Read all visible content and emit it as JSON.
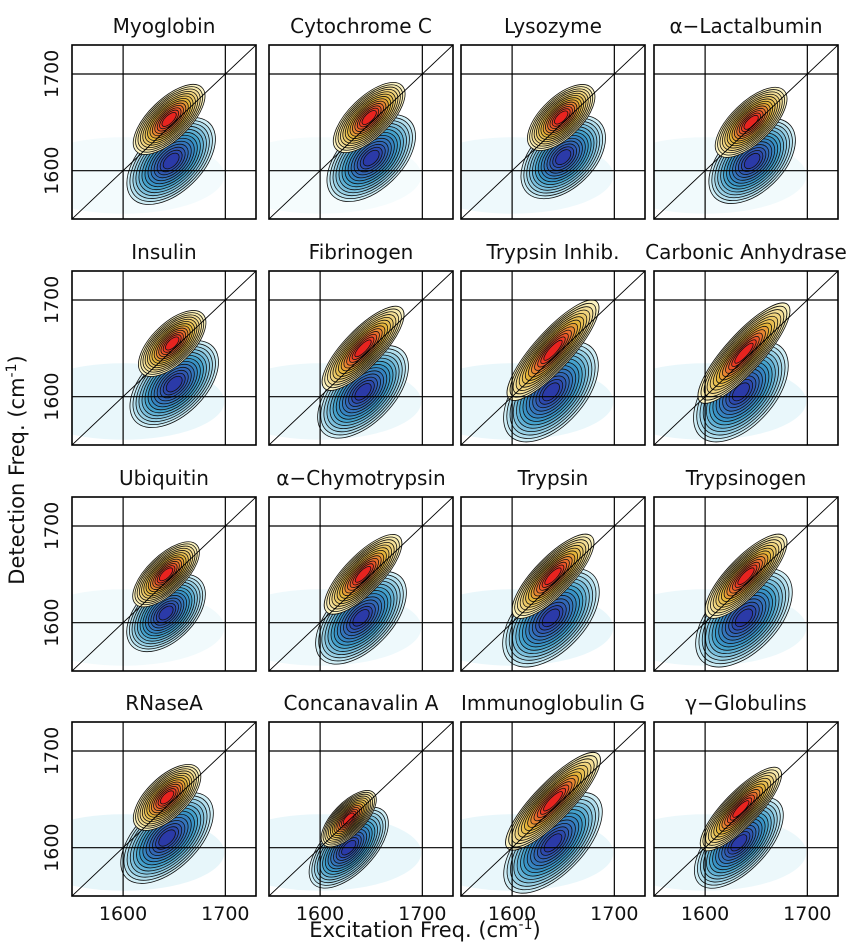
{
  "chart_data": {
    "type": "heatmap",
    "description_kind": "2D IR spectra grid",
    "xlabel": "Excitation Freq. (cm",
    "xlabel_sup": "-1",
    "xlabel_close": ")",
    "ylabel": "Detection Freq. (cm",
    "ylabel_sup": "-1",
    "ylabel_close": ")",
    "xlim": [
      1550,
      1730
    ],
    "ylim": [
      1550,
      1730
    ],
    "xticks": [
      1600,
      1700
    ],
    "yticks": [
      1600,
      1700
    ],
    "gridlines": [
      1600,
      1700
    ],
    "colors": {
      "positive_peak": "#e8231f",
      "negative_peak": "#2b3aa8",
      "positive_mid": "#e5b43a",
      "positive_low": "#fbf3c2",
      "negative_mid": "#3a9cc9",
      "negative_low": "#cfeef6"
    },
    "panels": [
      {
        "name": "Myoglobin",
        "pos": [
          1645,
          1653
        ],
        "neg": [
          1647,
          1610
        ],
        "posR": [
          28,
          14
        ],
        "negR": [
          34,
          22
        ],
        "angle": -44,
        "bg": 0.25
      },
      {
        "name": "Cytochrome C",
        "pos": [
          1648,
          1655
        ],
        "neg": [
          1650,
          1613
        ],
        "posR": [
          28,
          14
        ],
        "negR": [
          34,
          22
        ],
        "angle": -44,
        "bg": 0.2
      },
      {
        "name": "Lysozyme",
        "pos": [
          1648,
          1655
        ],
        "neg": [
          1650,
          1614
        ],
        "posR": [
          26,
          14
        ],
        "negR": [
          32,
          22
        ],
        "angle": -44,
        "bg": 0.35
      },
      {
        "name": "α−Lactalbumin",
        "pos": [
          1645,
          1650
        ],
        "neg": [
          1646,
          1610
        ],
        "posR": [
          28,
          14
        ],
        "negR": [
          33,
          22
        ],
        "angle": -44,
        "bg": 0.3
      },
      {
        "name": "Insulin",
        "pos": [
          1648,
          1655
        ],
        "neg": [
          1650,
          1613
        ],
        "posR": [
          26,
          14
        ],
        "negR": [
          34,
          22
        ],
        "angle": -44,
        "bg": 0.45
      },
      {
        "name": "Fibrinogen",
        "pos": [
          1642,
          1650
        ],
        "neg": [
          1642,
          1605
        ],
        "posR": [
          34,
          13
        ],
        "negR": [
          36,
          22
        ],
        "angle": -46,
        "bg": 0.4
      },
      {
        "name": "Trypsin Inhib.",
        "pos": [
          1640,
          1648
        ],
        "neg": [
          1638,
          1605
        ],
        "posR": [
          40,
          13
        ],
        "negR": [
          38,
          24
        ],
        "angle": -48,
        "bg": 0.45
      },
      {
        "name": "Carbonic Anhydrase",
        "pos": [
          1638,
          1645
        ],
        "neg": [
          1635,
          1605
        ],
        "posR": [
          40,
          13
        ],
        "negR": [
          38,
          24
        ],
        "angle": -48,
        "bg": 0.45
      },
      {
        "name": "Ubiquitin",
        "pos": [
          1642,
          1650
        ],
        "neg": [
          1642,
          1610
        ],
        "posR": [
          26,
          13
        ],
        "negR": [
          30,
          20
        ],
        "angle": -44,
        "bg": 0.3
      },
      {
        "name": "α−Chymotrypsin",
        "pos": [
          1642,
          1650
        ],
        "neg": [
          1640,
          1605
        ],
        "posR": [
          32,
          13
        ],
        "negR": [
          36,
          22
        ],
        "angle": -46,
        "bg": 0.35
      },
      {
        "name": "Trypsin",
        "pos": [
          1640,
          1648
        ],
        "neg": [
          1638,
          1605
        ],
        "posR": [
          34,
          13
        ],
        "negR": [
          38,
          24
        ],
        "angle": -46,
        "bg": 0.45
      },
      {
        "name": "Trypsinogen",
        "pos": [
          1640,
          1648
        ],
        "neg": [
          1638,
          1605
        ],
        "posR": [
          34,
          13
        ],
        "negR": [
          38,
          24
        ],
        "angle": -46,
        "bg": 0.4
      },
      {
        "name": "RNaseA",
        "pos": [
          1643,
          1652
        ],
        "neg": [
          1643,
          1610
        ],
        "posR": [
          26,
          14
        ],
        "negR": [
          36,
          22
        ],
        "angle": -44,
        "bg": 0.5
      },
      {
        "name": "Concanavalin A",
        "pos": [
          1628,
          1630
        ],
        "neg": [
          1628,
          1600
        ],
        "posR": [
          22,
          11
        ],
        "negR": [
          32,
          18
        ],
        "angle": -46,
        "bg": 0.45
      },
      {
        "name": "Immunoglobulin G",
        "pos": [
          1640,
          1648
        ],
        "neg": [
          1640,
          1605
        ],
        "posR": [
          40,
          13
        ],
        "negR": [
          40,
          22
        ],
        "angle": -46,
        "bg": 0.45
      },
      {
        "name": "γ−Globulins",
        "pos": [
          1635,
          1640
        ],
        "neg": [
          1633,
          1605
        ],
        "posR": [
          34,
          12
        ],
        "negR": [
          36,
          20
        ],
        "angle": -46,
        "bg": 0.4
      }
    ]
  }
}
